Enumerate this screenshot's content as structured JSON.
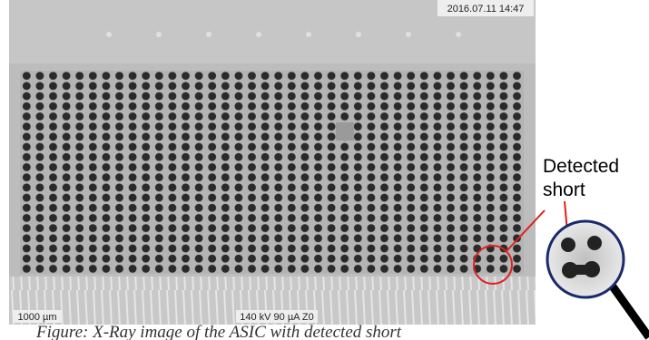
{
  "image": {
    "timestamp": "2016.07.11 14:47",
    "scale_bar": "1000 µm",
    "settings": "140 kV 90 µA Z0"
  },
  "annotation": {
    "line1": "Detected",
    "line2": "short"
  },
  "caption": "Figure: X-Ray image of the ASIC with detected short"
}
